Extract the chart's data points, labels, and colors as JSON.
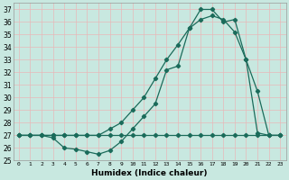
{
  "xlabel": "Humidex (Indice chaleur)",
  "background_color": "#c8e8e0",
  "grid_color": "#e8b8b8",
  "line_color": "#1a6b5a",
  "xlim": [
    -0.5,
    23.5
  ],
  "ylim": [
    25,
    37.5
  ],
  "yticks": [
    25,
    26,
    27,
    28,
    29,
    30,
    31,
    32,
    33,
    34,
    35,
    36,
    37
  ],
  "xticks": [
    0,
    1,
    2,
    3,
    4,
    5,
    6,
    7,
    8,
    9,
    10,
    11,
    12,
    13,
    14,
    15,
    16,
    17,
    18,
    19,
    20,
    21,
    22,
    23
  ],
  "line1_x": [
    0,
    1,
    2,
    3,
    4,
    5,
    6,
    7,
    8,
    9,
    10,
    11,
    12,
    13,
    14,
    15,
    16,
    17,
    18,
    19,
    20,
    21,
    22,
    23
  ],
  "line1_y": [
    27,
    27,
    27,
    26.8,
    26.0,
    25.9,
    25.7,
    25.5,
    25.8,
    26.5,
    27.5,
    28.5,
    29.5,
    32.2,
    32.5,
    35.5,
    37.0,
    37.0,
    36.0,
    36.2,
    33.0,
    30.5,
    27.0,
    27.0
  ],
  "line2_x": [
    0,
    1,
    2,
    3,
    4,
    5,
    6,
    7,
    8,
    9,
    10,
    11,
    12,
    13,
    14,
    15,
    16,
    17,
    18,
    19,
    20,
    21,
    22,
    23
  ],
  "line2_y": [
    27,
    27,
    27,
    27,
    27,
    27,
    27,
    27,
    27.5,
    28.0,
    29.0,
    30.0,
    31.5,
    33.0,
    34.2,
    35.5,
    36.2,
    36.5,
    36.2,
    35.2,
    33.0,
    27.2,
    27.0,
    27.0
  ],
  "line3_x": [
    0,
    1,
    2,
    3,
    4,
    5,
    6,
    7,
    8,
    9,
    10,
    11,
    12,
    13,
    14,
    15,
    16,
    17,
    18,
    19,
    20,
    21,
    22,
    23
  ],
  "line3_y": [
    27,
    27,
    27,
    27,
    27,
    27,
    27,
    27,
    27,
    27,
    27,
    27,
    27,
    27,
    27,
    27,
    27,
    27,
    27,
    27,
    27,
    27,
    27,
    27
  ]
}
